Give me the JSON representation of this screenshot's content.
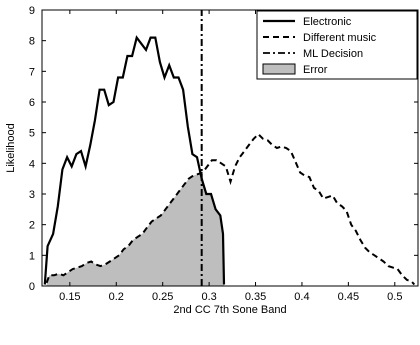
{
  "chart_data": {
    "type": "line",
    "xlabel": "2nd CC 7th Sone Band",
    "ylabel": "Likelihood",
    "xlim": [
      0.12,
      0.525
    ],
    "ylim": [
      0,
      9
    ],
    "xticks": [
      0.15,
      0.2,
      0.25,
      0.3,
      0.35,
      0.4,
      0.45,
      0.5
    ],
    "xtick_labels": [
      "0.15",
      "0.2",
      "0.25",
      "0.3",
      "0.35",
      "0.4",
      "0.45",
      "0.5"
    ],
    "yticks": [
      0,
      1,
      2,
      3,
      4,
      5,
      6,
      7,
      8,
      9
    ],
    "ytick_labels": [
      "0",
      "1",
      "2",
      "3",
      "4",
      "5",
      "6",
      "7",
      "8",
      "9"
    ],
    "grid": false,
    "legend_position": "top-right",
    "decision_boundary": 0.292,
    "series": [
      {
        "name": "Electronic",
        "style": "solid",
        "x": [
          0.123,
          0.126,
          0.132,
          0.137,
          0.142,
          0.147,
          0.152,
          0.157,
          0.162,
          0.167,
          0.172,
          0.177,
          0.182,
          0.187,
          0.192,
          0.197,
          0.202,
          0.207,
          0.212,
          0.217,
          0.222,
          0.227,
          0.232,
          0.237,
          0.242,
          0.247,
          0.252,
          0.257,
          0.262,
          0.267,
          0.272,
          0.277,
          0.282,
          0.287,
          0.292,
          0.297,
          0.302,
          0.307,
          0.312,
          0.315,
          0.316
        ],
        "y": [
          0.05,
          1.3,
          1.7,
          2.6,
          3.8,
          4.2,
          3.9,
          4.3,
          4.4,
          3.9,
          4.6,
          5.4,
          6.4,
          6.4,
          5.9,
          6.0,
          6.8,
          6.8,
          7.5,
          7.5,
          8.1,
          7.9,
          7.7,
          8.1,
          8.1,
          7.3,
          6.8,
          7.2,
          6.8,
          6.8,
          6.4,
          5.2,
          4.3,
          4.2,
          3.5,
          3.0,
          3.0,
          2.5,
          2.3,
          1.7,
          0.05
        ]
      },
      {
        "name": "Different music",
        "style": "dashed",
        "x": [
          0.125,
          0.128,
          0.133,
          0.138,
          0.143,
          0.148,
          0.153,
          0.158,
          0.163,
          0.168,
          0.173,
          0.178,
          0.183,
          0.188,
          0.193,
          0.198,
          0.203,
          0.208,
          0.213,
          0.218,
          0.223,
          0.228,
          0.233,
          0.238,
          0.243,
          0.248,
          0.253,
          0.258,
          0.263,
          0.268,
          0.273,
          0.278,
          0.283,
          0.288,
          0.293,
          0.298,
          0.303,
          0.308,
          0.313,
          0.318,
          0.323,
          0.328,
          0.333,
          0.338,
          0.343,
          0.348,
          0.353,
          0.358,
          0.363,
          0.368,
          0.373,
          0.378,
          0.383,
          0.388,
          0.393,
          0.398,
          0.403,
          0.408,
          0.413,
          0.418,
          0.423,
          0.428,
          0.433,
          0.438,
          0.443,
          0.448,
          0.453,
          0.458,
          0.463,
          0.468,
          0.473,
          0.478,
          0.483,
          0.488,
          0.493,
          0.498,
          0.503,
          0.508,
          0.513,
          0.518,
          0.521
        ],
        "y": [
          0.1,
          0.35,
          0.35,
          0.4,
          0.35,
          0.45,
          0.55,
          0.6,
          0.65,
          0.75,
          0.8,
          0.7,
          0.65,
          0.7,
          0.8,
          0.9,
          1.0,
          1.2,
          1.3,
          1.5,
          1.6,
          1.7,
          1.9,
          2.1,
          2.2,
          2.3,
          2.5,
          2.7,
          2.9,
          3.1,
          3.3,
          3.5,
          3.6,
          3.65,
          3.7,
          3.9,
          4.1,
          4.1,
          4.0,
          3.9,
          3.4,
          3.9,
          4.2,
          4.4,
          4.6,
          4.8,
          4.95,
          4.8,
          4.75,
          4.6,
          4.5,
          4.55,
          4.5,
          4.4,
          4.05,
          3.7,
          3.6,
          3.55,
          3.2,
          3.1,
          2.85,
          2.9,
          2.95,
          2.7,
          2.6,
          2.45,
          2.0,
          1.8,
          1.5,
          1.25,
          1.1,
          1.0,
          0.9,
          0.8,
          0.65,
          0.6,
          0.55,
          0.35,
          0.2,
          0.15,
          0.05
        ]
      },
      {
        "name": "ML Decision",
        "style": "dashdot",
        "x": [
          0.292,
          0.292
        ],
        "y": [
          0,
          9
        ]
      }
    ],
    "error_region": {
      "name": "Error",
      "color": "#bebebe",
      "description_x": [
        0.125,
        0.316
      ]
    },
    "legend": [
      "Electronic",
      "Different music",
      "ML Decision",
      "Error"
    ]
  }
}
